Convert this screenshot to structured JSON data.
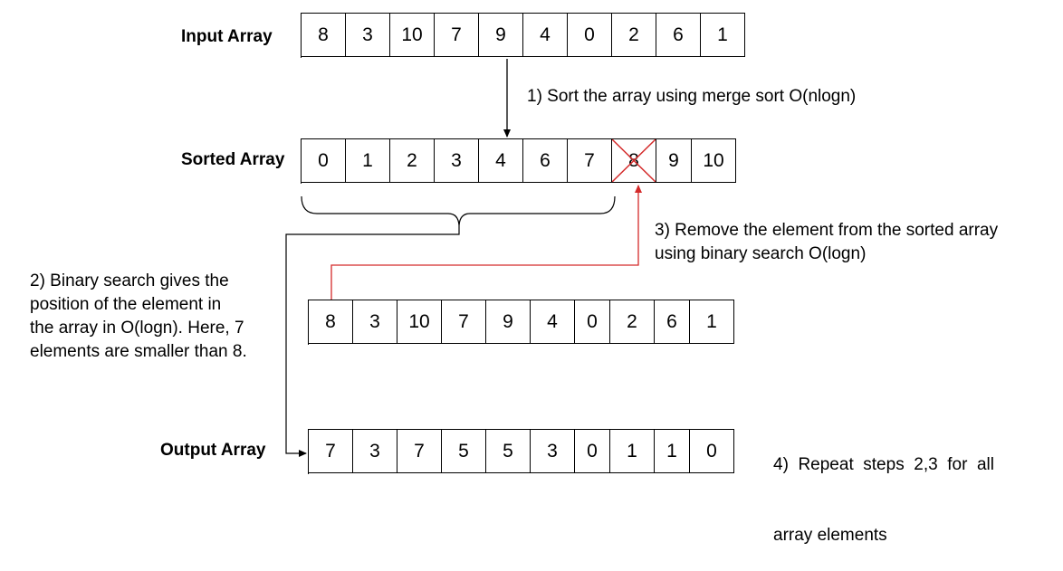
{
  "input": {
    "label": "Input Array",
    "values": [
      "8",
      "3",
      "10",
      "7",
      "9",
      "4",
      "0",
      "2",
      "6",
      "1"
    ]
  },
  "sorted": {
    "label": "Sorted Array",
    "values": [
      "0",
      "1",
      "2",
      "3",
      "4",
      "6",
      "7",
      "8",
      "9",
      "10"
    ],
    "removed_index": 7
  },
  "working": {
    "values": [
      "8",
      "3",
      "10",
      "7",
      "9",
      "4",
      "0",
      "2",
      "6",
      "1"
    ]
  },
  "output": {
    "label": "Output Array",
    "values": [
      "7",
      "3",
      "7",
      "5",
      "5",
      "3",
      "0",
      "1",
      "1",
      "0"
    ]
  },
  "steps": {
    "s1": "1) Sort the array using merge sort O(nlogn)",
    "s2": [
      "2) Binary search gives the",
      "position of the element in",
      "the array in O(logn). Here, 7",
      "elements are smaller than 8."
    ],
    "s3": [
      "3) Remove the element from the sorted array",
      "using binary search O(logn)"
    ],
    "s4": [
      "4)  Repeat  steps  2,3  for  all",
      "array elements"
    ]
  },
  "colors": {
    "highlight": "#d42a2a",
    "line": "#000000"
  }
}
